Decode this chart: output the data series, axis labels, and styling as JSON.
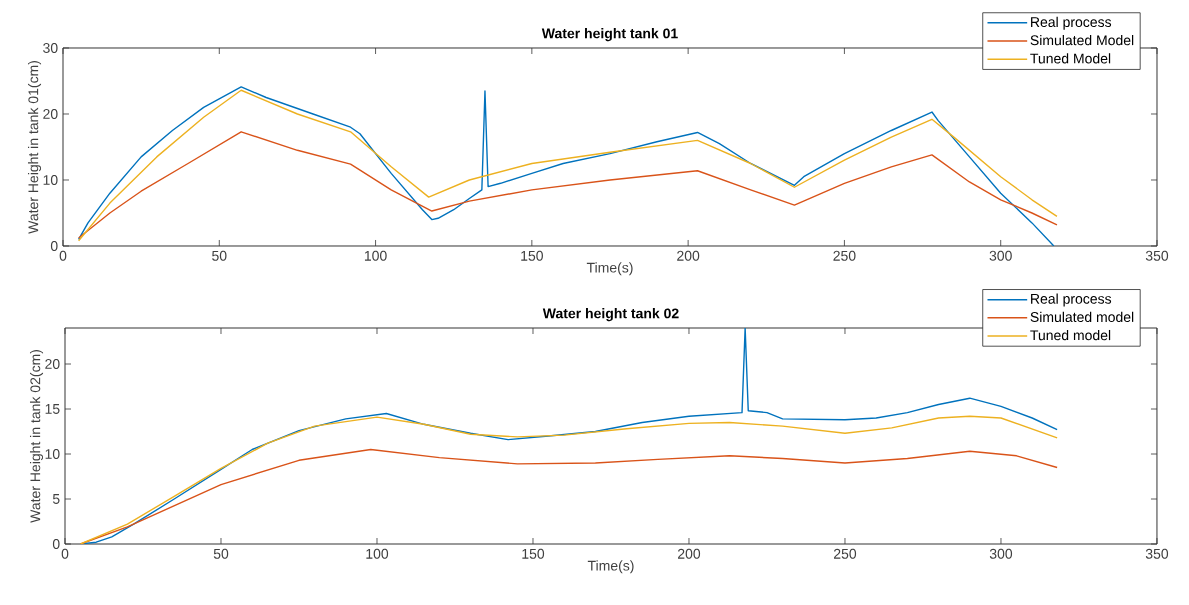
{
  "chart_data": [
    {
      "type": "line",
      "title": "Water height tank 01",
      "xlabel": "Time(s)",
      "ylabel": "Water Height in tank 01(cm)",
      "xlim": [
        0,
        350
      ],
      "ylim": [
        0,
        30
      ],
      "xticks": [
        0,
        50,
        100,
        150,
        200,
        250,
        300,
        350
      ],
      "yticks": [
        0,
        10,
        20,
        30
      ],
      "legend": "top right",
      "series": [
        {
          "name": "Real process",
          "color": "#0072bd",
          "x": [
            5,
            8,
            15,
            25,
            35,
            45,
            57,
            65,
            80,
            92,
            95,
            105,
            115,
            118,
            120,
            125,
            130,
            134,
            135,
            136,
            140,
            150,
            160,
            175,
            190,
            203,
            210,
            220,
            234,
            237,
            250,
            265,
            278,
            280,
            290,
            300,
            310,
            317
          ],
          "values": [
            1,
            3.5,
            8,
            13.5,
            17.5,
            21,
            24.1,
            22.5,
            20,
            18,
            17,
            11,
            5.5,
            4,
            4.2,
            5.5,
            7.2,
            8.5,
            23.5,
            9,
            9.5,
            11,
            12.5,
            14,
            15.8,
            17.2,
            15.5,
            12.5,
            9.2,
            10.5,
            14,
            17.5,
            20.3,
            19,
            13.5,
            8,
            3.5,
            0
          ]
        },
        {
          "name": "Simulated Model",
          "color": "#d95319",
          "x": [
            5,
            15,
            25,
            40,
            57,
            75,
            92,
            105,
            118,
            130,
            150,
            175,
            203,
            220,
            234,
            250,
            265,
            278,
            290,
            300,
            310,
            318
          ],
          "values": [
            1.2,
            5,
            8.3,
            12.5,
            17.3,
            14.5,
            12.4,
            8.5,
            5.3,
            6.8,
            8.5,
            10,
            11.4,
            8.5,
            6.2,
            9.5,
            12,
            13.8,
            9.7,
            7,
            5,
            3.2
          ]
        },
        {
          "name": "Tuned Model",
          "color": "#edb120",
          "x": [
            5,
            15,
            30,
            45,
            57,
            75,
            92,
            105,
            117,
            130,
            150,
            175,
            203,
            220,
            234,
            250,
            265,
            278,
            285,
            300,
            310,
            318
          ],
          "values": [
            0.8,
            6.5,
            13.5,
            19.5,
            23.6,
            20,
            17.3,
            12,
            7.4,
            10,
            12.5,
            14.2,
            16,
            12.5,
            8.9,
            13,
            16.5,
            19.2,
            16.5,
            10.5,
            7,
            4.5
          ]
        }
      ]
    },
    {
      "type": "line",
      "title": "Water height tank 02",
      "xlabel": "Time(s)",
      "ylabel": "Water Height in tank 02(cm)",
      "xlim": [
        0,
        350
      ],
      "ylim": [
        0,
        24
      ],
      "xticks": [
        0,
        50,
        100,
        150,
        200,
        250,
        300,
        350
      ],
      "yticks": [
        0,
        5,
        10,
        15,
        20
      ],
      "legend": "top right",
      "series": [
        {
          "name": "Real process",
          "color": "#0072bd",
          "x": [
            5,
            10,
            15,
            22,
            35,
            50,
            60,
            75,
            90,
            103,
            115,
            130,
            142,
            155,
            170,
            185,
            200,
            217,
            218,
            219,
            225,
            230,
            250,
            260,
            270,
            280,
            290,
            300,
            310,
            318
          ],
          "values": [
            0,
            0.2,
            0.8,
            2.2,
            5,
            8.3,
            10.5,
            12.6,
            13.9,
            14.5,
            13.3,
            12.3,
            11.6,
            12,
            12.5,
            13.5,
            14.2,
            14.6,
            24,
            14.8,
            14.6,
            13.9,
            13.8,
            14,
            14.6,
            15.5,
            16.2,
            15.3,
            14,
            12.7
          ]
        },
        {
          "name": "Simulated model",
          "color": "#d95319",
          "x": [
            5,
            20,
            50,
            75,
            98,
            120,
            145,
            170,
            190,
            213,
            230,
            250,
            270,
            290,
            305,
            318
          ],
          "values": [
            0,
            1.9,
            6.6,
            9.3,
            10.5,
            9.6,
            8.9,
            9,
            9.4,
            9.8,
            9.5,
            9,
            9.5,
            10.3,
            9.8,
            8.5
          ]
        },
        {
          "name": "Tuned model",
          "color": "#edb120",
          "x": [
            5,
            20,
            35,
            50,
            65,
            80,
            100,
            115,
            130,
            145,
            160,
            180,
            200,
            213,
            230,
            250,
            265,
            280,
            290,
            300,
            318
          ],
          "values": [
            0,
            2.2,
            5.3,
            8.4,
            11.2,
            13.1,
            14.1,
            13.3,
            12.2,
            11.9,
            12.1,
            12.8,
            13.4,
            13.5,
            13.1,
            12.3,
            12.9,
            14,
            14.2,
            14,
            11.8
          ]
        }
      ]
    }
  ]
}
